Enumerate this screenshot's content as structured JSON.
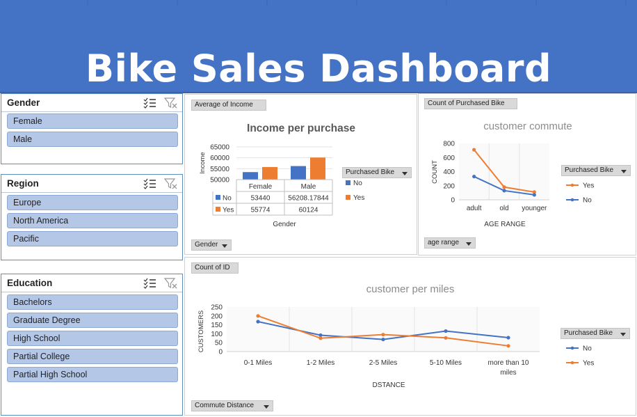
{
  "banner": {
    "title": "Bike Sales Dashboard"
  },
  "slicers": {
    "gender": {
      "title": "Gender",
      "items": [
        "Female",
        "Male"
      ]
    },
    "region": {
      "title": "Region",
      "items": [
        "Europe",
        "North America",
        "Pacific"
      ]
    },
    "education": {
      "title": "Education",
      "items": [
        "Bachelors",
        "Graduate Degree",
        "High School",
        "Partial College",
        "Partial High School"
      ]
    }
  },
  "panels": {
    "income": {
      "value_field": "Average of Income",
      "axis_field": "Gender",
      "legend_field": "Purchased Bike",
      "table_headers": [
        "Female",
        "Male"
      ],
      "table_rows": [
        {
          "label": "No",
          "values": [
            "53440",
            "56208.17844"
          ]
        },
        {
          "label": "Yes",
          "values": [
            "55774",
            "60124"
          ]
        }
      ]
    },
    "commute": {
      "value_field": "Count of Purchased Bike",
      "axis_field": "age range",
      "legend_field": "Purchased Bike"
    },
    "miles": {
      "value_field": "Count of ID",
      "axis_field": "Commute Distance",
      "legend_field": "Purchased Bike"
    }
  },
  "colors": {
    "banner": "#4472c4",
    "no": "#4472c4",
    "yes": "#ed7d31",
    "slicer_item": "#b4c7e7"
  },
  "icons": {
    "multi_select": "multi-select-icon",
    "clear_filter": "clear-filter-icon",
    "dropdown": "dropdown-arrow-icon"
  },
  "chart_data": [
    {
      "type": "bar",
      "title": "Income per purchase",
      "xlabel": "Gender",
      "ylabel": "Income",
      "categories": [
        "Female",
        "Male"
      ],
      "series": [
        {
          "name": "No",
          "values": [
            53440,
            56208.17844
          ]
        },
        {
          "name": "Yes",
          "values": [
            55774,
            60124
          ]
        }
      ],
      "ylim": [
        50000,
        65000
      ],
      "yticks": [
        65000,
        60000,
        55000,
        50000
      ],
      "legend": "right"
    },
    {
      "type": "line",
      "title": "customer commute",
      "xlabel": "AGE RANGE",
      "ylabel": "COUNT",
      "categories": [
        "adult",
        "old",
        "younger"
      ],
      "series": [
        {
          "name": "Yes",
          "values": [
            710,
            180,
            110
          ]
        },
        {
          "name": "No",
          "values": [
            330,
            130,
            70
          ]
        }
      ],
      "ylim": [
        0,
        800
      ],
      "yticks": [
        800,
        600,
        400,
        200,
        0
      ],
      "legend": "right"
    },
    {
      "type": "line",
      "title": "customer per miles",
      "xlabel": "DSTANCE",
      "ylabel": "CUSTOMERS",
      "categories": [
        "0-1 Miles",
        "1-2 Miles",
        "2-5 Miles",
        "5-10 Miles",
        "more than 10 miles"
      ],
      "series": [
        {
          "name": "No",
          "values": [
            168,
            92,
            68,
            115,
            78
          ]
        },
        {
          "name": "Yes",
          "values": [
            200,
            75,
            95,
            77,
            32
          ]
        }
      ],
      "ylim": [
        0,
        250
      ],
      "yticks": [
        250,
        200,
        150,
        100,
        50,
        0
      ],
      "legend": "right"
    }
  ]
}
